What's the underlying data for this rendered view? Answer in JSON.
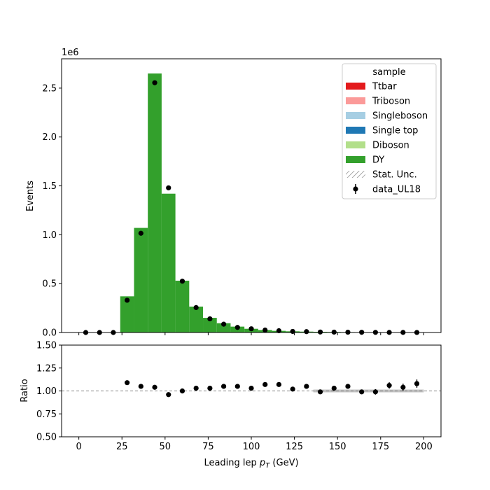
{
  "chart_data": [
    {
      "type": "bar",
      "panel": "main",
      "stacked": true,
      "ylabel": "Events",
      "y_offset_label": "1e6",
      "ylim": [
        0,
        2800000
      ],
      "y_ticks": [
        0,
        500000,
        1000000,
        1500000,
        2000000,
        2500000
      ],
      "y_tick_labels": [
        "0.0",
        "0.5",
        "1.0",
        "1.5",
        "2.0",
        "2.5"
      ],
      "xlim": [
        -10,
        210
      ],
      "x_ticks": [
        0,
        25,
        50,
        75,
        100,
        125,
        150,
        175,
        200
      ],
      "x_tick_labels": [
        "0",
        "25",
        "50",
        "75",
        "100",
        "125",
        "150",
        "175",
        "200"
      ],
      "bin_edges": [
        0,
        8,
        16,
        24,
        32,
        40,
        48,
        56,
        64,
        72,
        80,
        88,
        96,
        104,
        112,
        120,
        128,
        136,
        144,
        152,
        160,
        168,
        176,
        184,
        192,
        200
      ],
      "series": [
        {
          "name": "DY",
          "color": "#33a02c",
          "values": [
            0,
            0,
            0,
            370000,
            1070000,
            2650000,
            1420000,
            530000,
            265000,
            150000,
            95000,
            60000,
            38000,
            25000,
            17000,
            12000,
            9000,
            7000,
            5500,
            4000,
            3000,
            2500,
            2000,
            1500,
            1000
          ]
        },
        {
          "name": "Diboson",
          "color": "#b2df8a",
          "values": [
            0,
            0,
            0,
            0,
            0,
            0,
            0,
            0,
            0,
            0,
            0,
            0,
            0,
            0,
            0,
            0,
            0,
            0,
            0,
            0,
            0,
            0,
            0,
            0,
            0
          ]
        },
        {
          "name": "Single top",
          "color": "#1f78b4",
          "values": [
            0,
            0,
            0,
            0,
            0,
            0,
            0,
            0,
            0,
            0,
            0,
            0,
            0,
            0,
            0,
            0,
            0,
            0,
            0,
            0,
            0,
            0,
            0,
            0,
            0
          ]
        },
        {
          "name": "Singleboson",
          "color": "#a6cee3",
          "values": [
            0,
            0,
            0,
            0,
            0,
            0,
            0,
            0,
            0,
            0,
            0,
            0,
            0,
            0,
            0,
            0,
            0,
            0,
            0,
            0,
            0,
            0,
            0,
            0,
            0
          ]
        },
        {
          "name": "Triboson",
          "color": "#fb9a99",
          "values": [
            0,
            0,
            0,
            0,
            0,
            0,
            0,
            0,
            0,
            0,
            0,
            0,
            0,
            0,
            0,
            0,
            0,
            0,
            0,
            0,
            0,
            0,
            0,
            0,
            0
          ]
        },
        {
          "name": "Ttbar",
          "color": "#e31a1c",
          "values": [
            0,
            0,
            0,
            0,
            0,
            0,
            0,
            0,
            0,
            0,
            0,
            0,
            0,
            0,
            0,
            0,
            0,
            0,
            0,
            0,
            0,
            0,
            0,
            0,
            0
          ]
        }
      ],
      "data_points": {
        "name": "data_UL18",
        "x": [
          4,
          12,
          20,
          28,
          36,
          44,
          52,
          60,
          68,
          76,
          84,
          92,
          100,
          108,
          116,
          124,
          132,
          140,
          148,
          156,
          164,
          172,
          180,
          188,
          196
        ],
        "y": [
          0,
          0,
          0,
          330000,
          1015000,
          2555000,
          1480000,
          525000,
          255000,
          140000,
          85000,
          52000,
          38000,
          25000,
          18000,
          11000,
          9000,
          5000,
          4000,
          3000,
          2000,
          1500,
          1000,
          800,
          600
        ]
      },
      "legend": {
        "title": "sample",
        "placement": "top-right",
        "entries": [
          {
            "label": "Ttbar",
            "kind": "patch",
            "color": "#e31a1c"
          },
          {
            "label": "Triboson",
            "kind": "patch",
            "color": "#fb9a99"
          },
          {
            "label": "Singleboson",
            "kind": "patch",
            "color": "#a6cee3"
          },
          {
            "label": "Single top",
            "kind": "patch",
            "color": "#1f78b4"
          },
          {
            "label": "Diboson",
            "kind": "patch",
            "color": "#b2df8a"
          },
          {
            "label": "DY",
            "kind": "patch",
            "color": "#33a02c"
          },
          {
            "label": "Stat. Unc.",
            "kind": "hatch",
            "color": "#888888"
          },
          {
            "label": "data_UL18",
            "kind": "errorbar",
            "color": "#000000"
          }
        ]
      }
    },
    {
      "type": "scatter",
      "panel": "ratio",
      "ylabel": "Ratio",
      "xlabel": "Leading lep $p_T$ (GeV)",
      "ylim": [
        0.5,
        1.5
      ],
      "y_ticks": [
        0.5,
        0.75,
        1.0,
        1.25,
        1.5
      ],
      "y_tick_labels": [
        "0.50",
        "0.75",
        "1.00",
        "1.25",
        "1.50"
      ],
      "reference_line": 1.0,
      "x": [
        28,
        36,
        44,
        52,
        60,
        68,
        76,
        84,
        92,
        100,
        108,
        116,
        124,
        132,
        140,
        148,
        156,
        164,
        172,
        180,
        188,
        196
      ],
      "y": [
        1.09,
        1.05,
        1.04,
        0.96,
        1.0,
        1.03,
        1.03,
        1.05,
        1.05,
        1.03,
        1.07,
        1.07,
        1.02,
        1.05,
        0.99,
        1.03,
        1.05,
        0.99,
        0.99,
        1.06,
        1.04,
        1.08
      ],
      "yerr": [
        0.003,
        0.002,
        0.002,
        0.002,
        0.003,
        0.004,
        0.005,
        0.006,
        0.008,
        0.01,
        0.012,
        0.014,
        0.016,
        0.018,
        0.02,
        0.022,
        0.025,
        0.025,
        0.03,
        0.035,
        0.04,
        0.045
      ],
      "stat_unc_band": {
        "x_ranges": [
          [
            136,
            200
          ]
        ],
        "half_width": [
          0.015
        ]
      }
    }
  ]
}
